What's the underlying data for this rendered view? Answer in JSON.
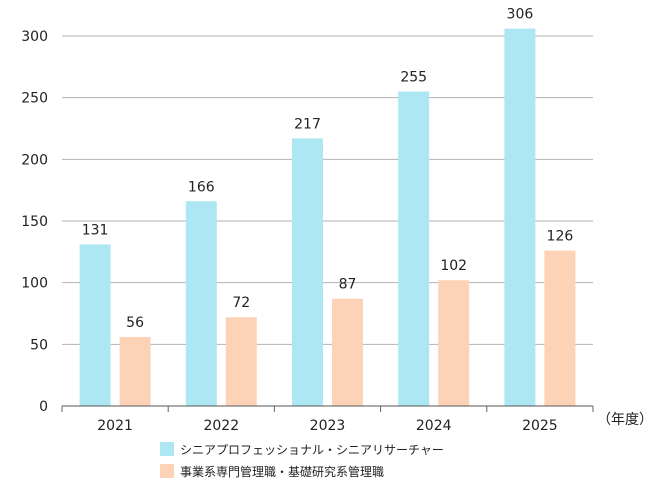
{
  "chart_data": {
    "type": "bar",
    "categories": [
      "2021",
      "2022",
      "2023",
      "2024",
      "2025"
    ],
    "series": [
      {
        "name": "シニアプロフェッショナル・シニアリサーチャー",
        "values": [
          131,
          166,
          217,
          255,
          306
        ],
        "color": "#ade7f3"
      },
      {
        "name": "事業系専門管理職・基礎研究系管理職",
        "values": [
          56,
          72,
          87,
          102,
          126
        ],
        "color": "#fdd3b8"
      }
    ],
    "ylim": [
      0,
      300
    ],
    "yticks": [
      0,
      50,
      100,
      150,
      200,
      250,
      300
    ],
    "xlabel": "（年度）",
    "grid": true,
    "legend_position": "bottom"
  }
}
